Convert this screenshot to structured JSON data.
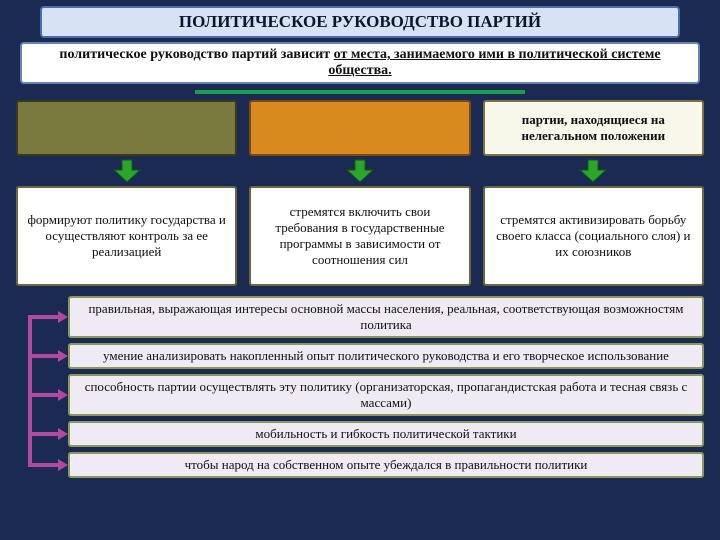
{
  "background_color": "#1a2a52",
  "title": {
    "text": "ПОЛИТИЧЕСКОЕ РУКОВОДСТВО ПАРТИЙ",
    "bg": "#d7e3f4",
    "border": "#4a6ca8",
    "color": "#0a1530",
    "fontsize": 17
  },
  "subtitle": {
    "prefix": "политическое руководство партий зависит ",
    "underlined": "от места, занимаемого ими в политической системе общества.",
    "bg": "#ffffff",
    "border": "#6a83b6",
    "color": "#101012",
    "fontsize": 14
  },
  "hline_color": "#1aa04a",
  "top_cards": [
    {
      "text": "",
      "bg": "#7a7a3e",
      "border": "#3a3a1a",
      "color": "#101012"
    },
    {
      "text": "",
      "bg": "#d98a1f",
      "border": "#7a4a0f",
      "color": "#101012"
    },
    {
      "text": "партии, находящиеся на нелегальном положении",
      "bg": "#f7f7ea",
      "border": "#7a7440",
      "color": "#101012"
    }
  ],
  "top_fontsize": 13,
  "arrow": {
    "fill": "#2aa62a",
    "stroke": "#155515"
  },
  "mid_cards": [
    {
      "text": "формируют политику государства и осуществляют контроль за ее реализацией"
    },
    {
      "text": "стремятся включить свои требования в государственные программы в зависимости от соотношения сил"
    },
    {
      "text": "стремятся активизировать борьбу своего класса (социального слоя) и их союзников"
    }
  ],
  "mid_style": {
    "bg": "#ffffff",
    "border": "#6a6a40",
    "color": "#101012",
    "fontsize": 13
  },
  "connector_color": "#b04aa0",
  "bottom_bars": [
    "правильная, выражающая интересы основной массы населения, реальная, соответствующая возможностям политика",
    "умение анализировать накопленный опыт политического руководства и его творческое использование",
    "способность партии осуществлять эту политику (организаторская, пропагандистская работа и тесная связь с массами)",
    "мобильность и гибкость политической тактики",
    "чтобы народ на собственном опыте убеждался в правильности политики"
  ],
  "bottom_style": {
    "bg": "#f0eaf5",
    "border": "#8a9a5a",
    "color": "#101012",
    "fontsize": 13
  }
}
